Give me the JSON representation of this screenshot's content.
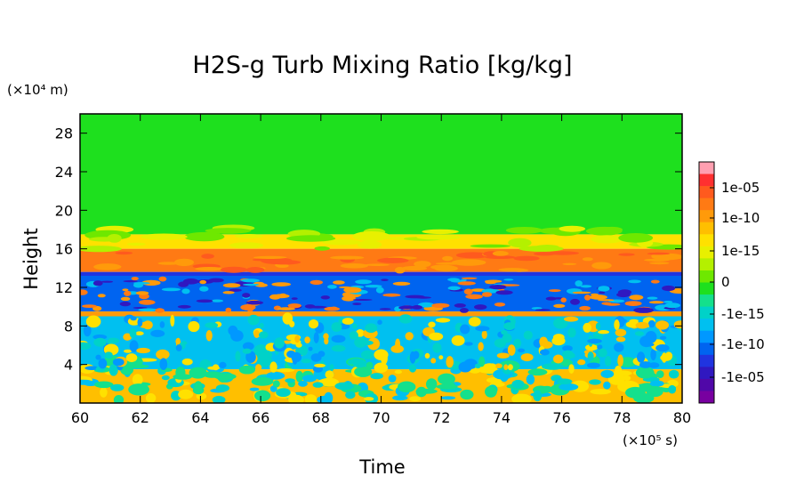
{
  "chart_data": {
    "type": "heatmap",
    "title": "H2S-g Turb Mixing Ratio [kg/kg]",
    "xlabel": "Time",
    "ylabel": "Height",
    "x_unit": "(×10⁵ s)",
    "y_unit": "(×10⁴ m)",
    "xlim": [
      60,
      80
    ],
    "ylim": [
      0,
      30
    ],
    "x_ticks": [
      "60",
      "62",
      "64",
      "66",
      "68",
      "70",
      "72",
      "74",
      "76",
      "78",
      "80"
    ],
    "y_ticks": [
      "4",
      "8",
      "12",
      "16",
      "20",
      "24",
      "28"
    ],
    "colorbar": {
      "tick_labels": [
        "1e-05",
        "1e-10",
        "1e-15",
        "0",
        "-1e-15",
        "-1e-10",
        "-1e-05"
      ],
      "colors": [
        "#ff9fb0",
        "#ff3030",
        "#ff5a1e",
        "#ff7a14",
        "#ff9a0a",
        "#ffbf00",
        "#ffe100",
        "#e8f000",
        "#b4f000",
        "#6ee800",
        "#1ee01e",
        "#14e08c",
        "#00d2c8",
        "#00c0f0",
        "#0098ff",
        "#0064f0",
        "#2034e0",
        "#3018c0",
        "#5008a8",
        "#7800a0"
      ]
    },
    "bands": [
      {
        "from": 17.5,
        "to": 30,
        "level": "0",
        "color": "#1ee01e"
      },
      {
        "from": 16,
        "to": 17.5,
        "level": "1e-15",
        "color": "#ffe100"
      },
      {
        "from": 13.6,
        "to": 16,
        "level": "1e-10",
        "color": "#ff7a14"
      },
      {
        "from": 13.2,
        "to": 13.6,
        "level": "-1e-05",
        "color": "#2034e0"
      },
      {
        "from": 9.5,
        "to": 13.2,
        "level": "-1e-10",
        "color": "#0064f0"
      },
      {
        "from": 9.0,
        "to": 9.5,
        "level": "1e-10",
        "color": "#ff9a0a"
      },
      {
        "from": 3.5,
        "to": 9.0,
        "level": "-1e-15",
        "color": "#00c0f0"
      },
      {
        "from": 0,
        "to": 3.5,
        "level": "1e-15",
        "color": "#ffbf00"
      }
    ]
  }
}
